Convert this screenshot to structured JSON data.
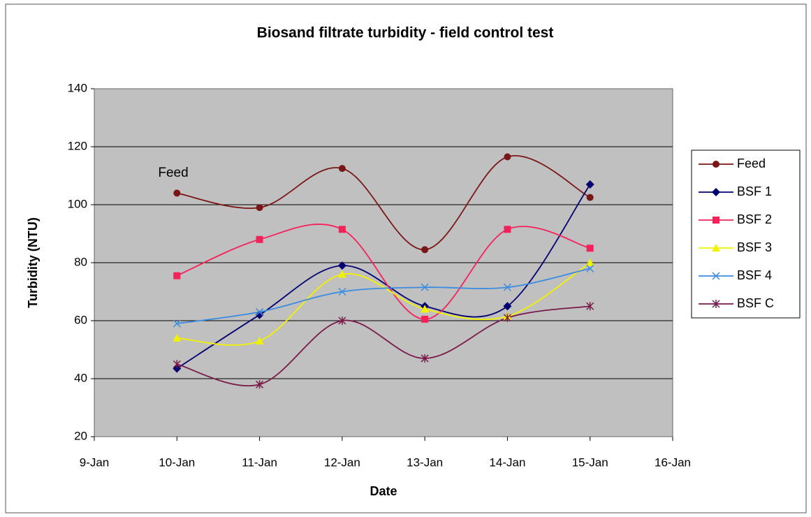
{
  "chart_data": {
    "type": "line",
    "title": "Biosand filtrate turbidity - field control test",
    "xlabel": "Date",
    "ylabel": "Turbidity (NTU)",
    "annotation": "Feed",
    "xticks": [
      "9-Jan",
      "10-Jan",
      "11-Jan",
      "12-Jan",
      "13-Jan",
      "14-Jan",
      "15-Jan",
      "16-Jan"
    ],
    "x": [
      "10-Jan",
      "11-Jan",
      "12-Jan",
      "13-Jan",
      "14-Jan",
      "15-Jan"
    ],
    "ylim": [
      20,
      140
    ],
    "yticks": [
      20,
      40,
      60,
      80,
      100,
      120,
      140
    ],
    "grid": true,
    "smooth": true,
    "legend": "right",
    "series": [
      {
        "name": "Feed",
        "color": "#7a1616",
        "marker": "circle",
        "values": [
          104,
          99,
          112.5,
          84.5,
          116.5,
          102.5
        ]
      },
      {
        "name": "BSF 1",
        "color": "#000070",
        "marker": "diamond",
        "values": [
          43.5,
          62,
          79,
          65,
          65,
          107
        ]
      },
      {
        "name": "BSF 2",
        "color": "#f5225a",
        "marker": "square",
        "values": [
          75.5,
          88,
          91.5,
          60.5,
          91.5,
          85
        ]
      },
      {
        "name": "BSF 3",
        "color": "#f2f200",
        "marker": "triangle",
        "values": [
          54,
          53,
          76,
          64,
          61.5,
          80
        ]
      },
      {
        "name": "BSF 4",
        "color": "#3a8ce0",
        "marker": "x",
        "values": [
          59,
          63,
          70,
          71.5,
          71.5,
          78
        ]
      },
      {
        "name": "BSF C",
        "color": "#7a1a4a",
        "marker": "star",
        "values": [
          45,
          38,
          60,
          47,
          61,
          65
        ]
      }
    ]
  }
}
